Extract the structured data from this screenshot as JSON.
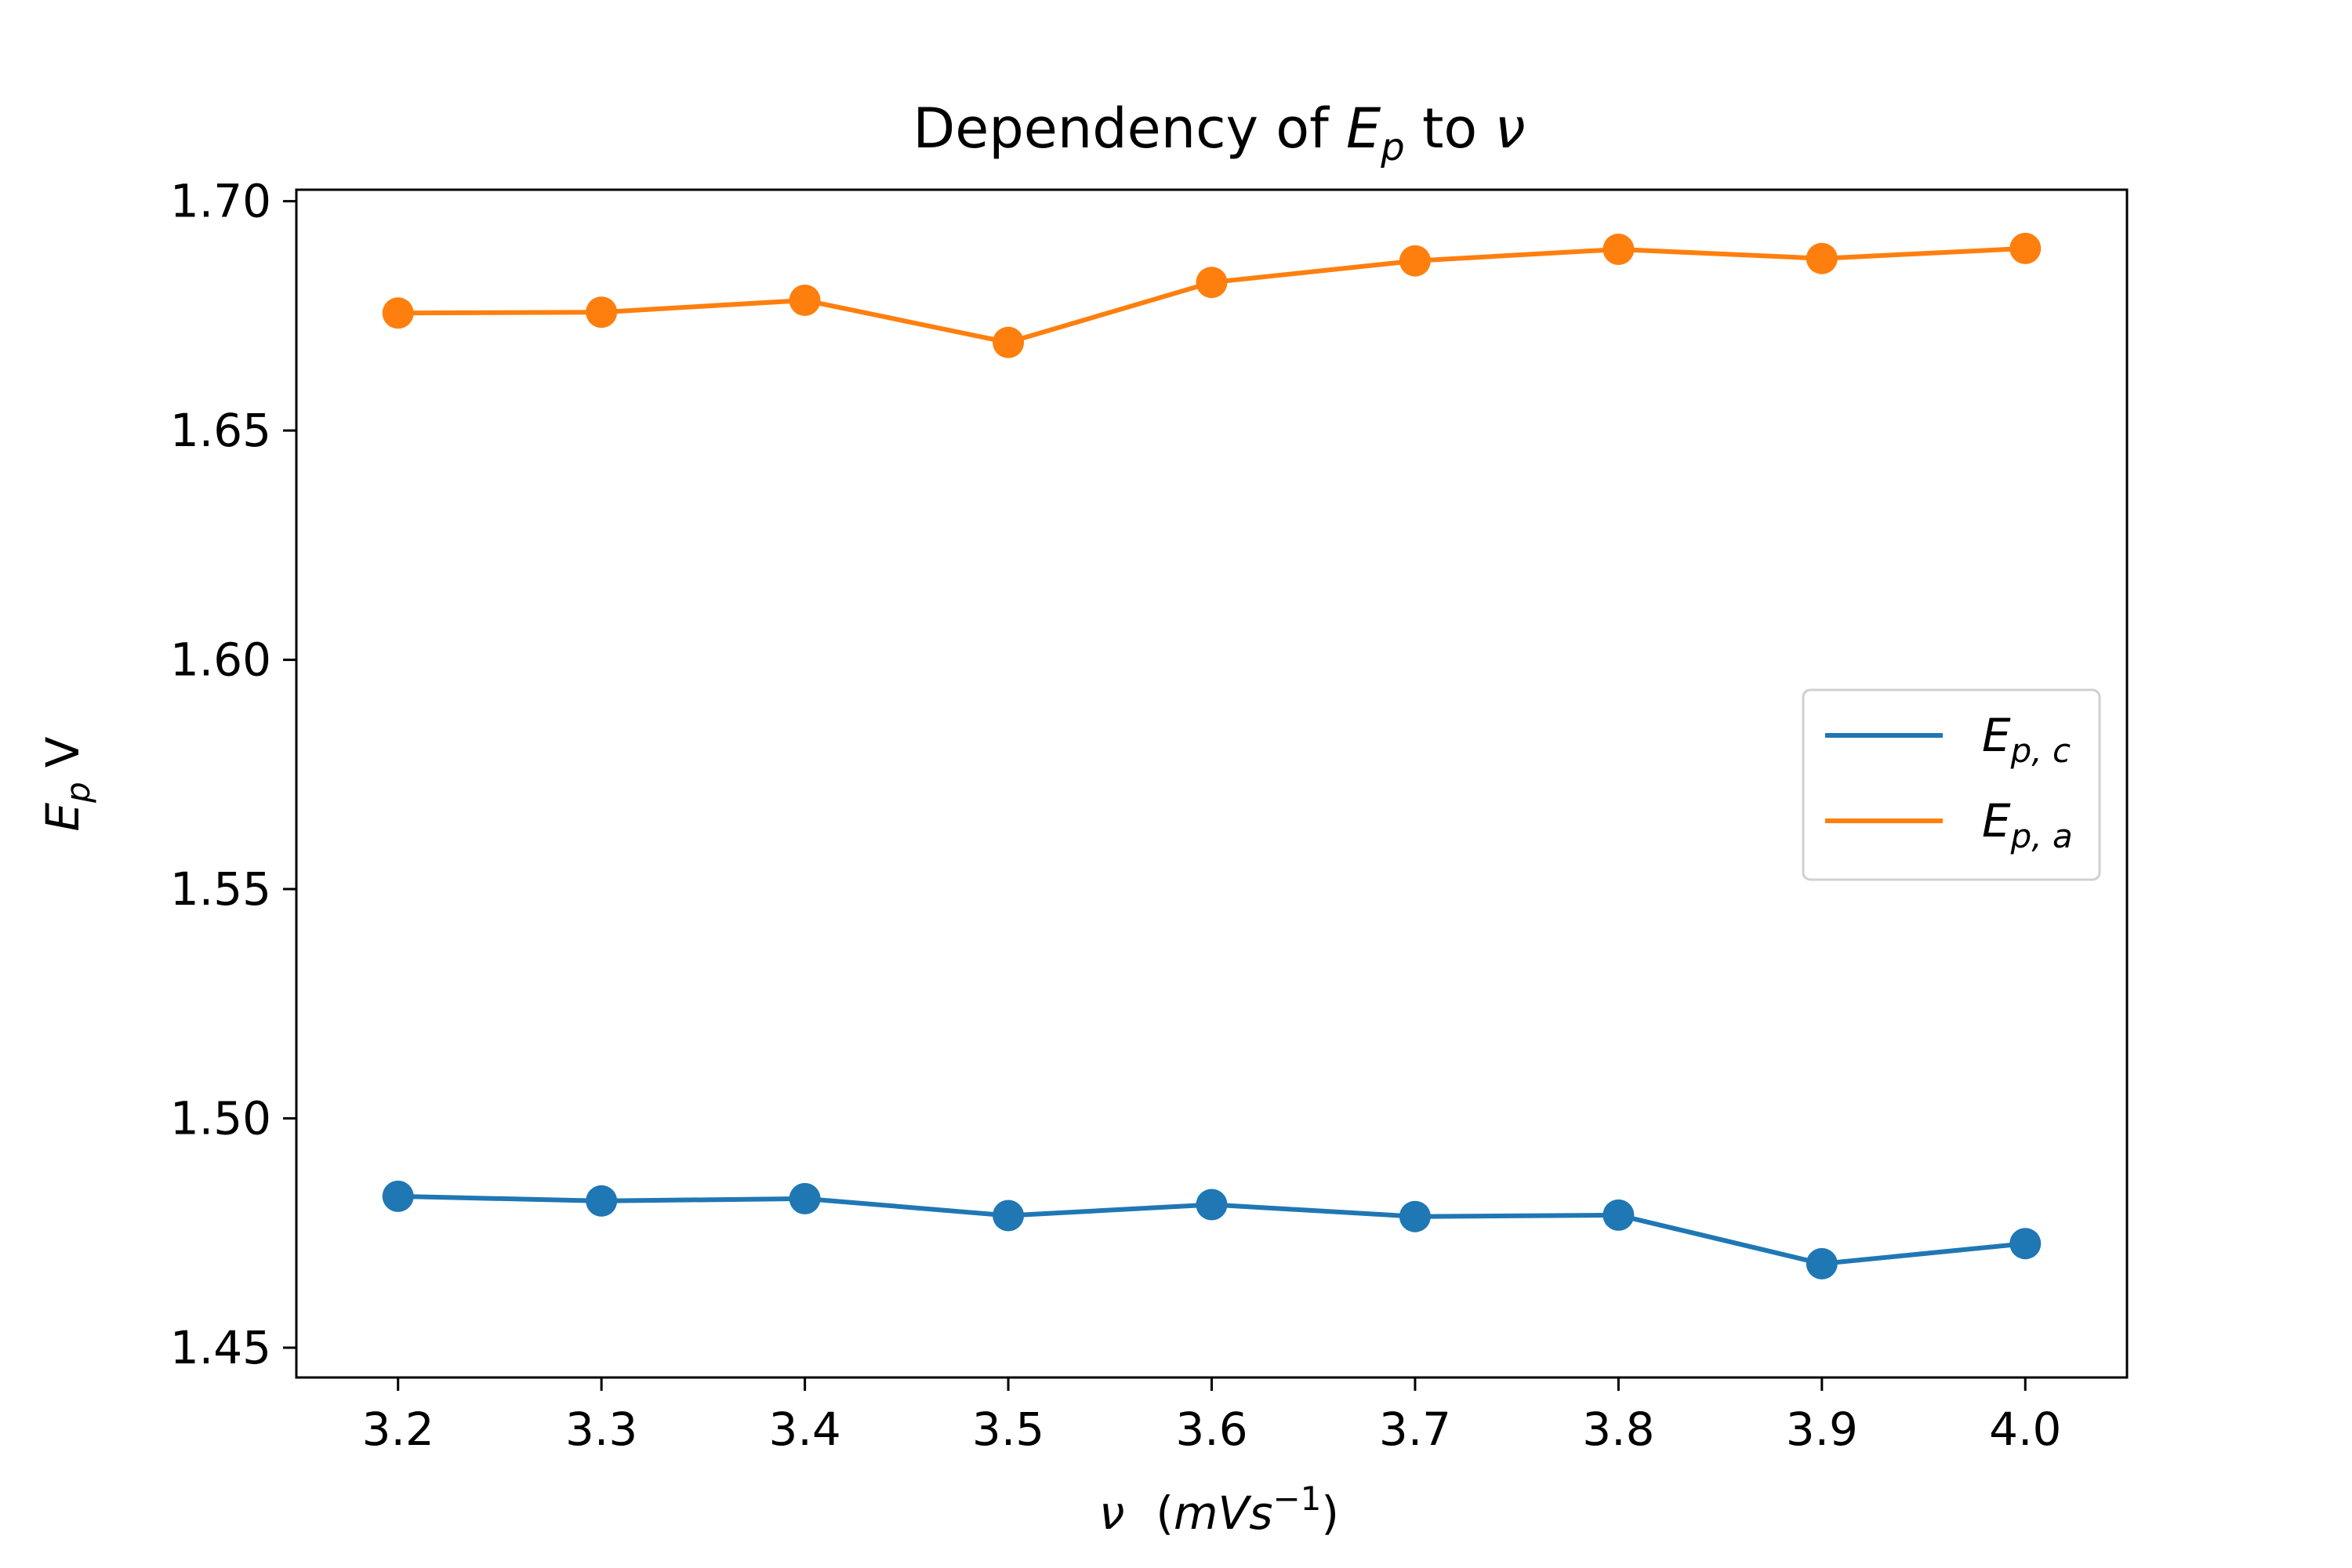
{
  "chart_data": {
    "type": "line",
    "title": {
      "prefix": "Dependency of ",
      "main": "E",
      "sub": "p",
      "middle": " to ",
      "symbol": "ν"
    },
    "xlabel": {
      "symbol": "ν",
      "unit_open": "(",
      "unit_main": "mVs",
      "unit_sup": "−1",
      "unit_close": ")"
    },
    "ylabel": {
      "main": "E",
      "sub": "p",
      "unit": "V"
    },
    "xlim": [
      3.15,
      4.05
    ],
    "ylim": [
      1.4435,
      1.7025
    ],
    "xticks": [
      3.2,
      3.3,
      3.4,
      3.5,
      3.6,
      3.7,
      3.8,
      3.9,
      4.0
    ],
    "xtick_labels": [
      "3.2",
      "3.3",
      "3.4",
      "3.5",
      "3.6",
      "3.7",
      "3.8",
      "3.9",
      "4.0"
    ],
    "yticks": [
      1.45,
      1.5,
      1.55,
      1.6,
      1.65,
      1.7
    ],
    "ytick_labels": [
      "1.45",
      "1.50",
      "1.55",
      "1.60",
      "1.65",
      "1.70"
    ],
    "x": [
      3.2,
      3.3,
      3.4,
      3.5,
      3.6,
      3.7,
      3.8,
      3.9,
      4.0
    ],
    "series": [
      {
        "key": "c",
        "name_main": "E",
        "name_sub": "p, c",
        "color": "#1f77b4",
        "values": [
          1.483,
          1.482,
          1.4825,
          1.4788,
          1.4812,
          1.4786,
          1.4789,
          1.4683,
          1.4727
        ]
      },
      {
        "key": "a",
        "name_main": "E",
        "name_sub": "p, a",
        "color": "#ff7f0e",
        "values": [
          1.6756,
          1.6758,
          1.6784,
          1.6692,
          1.6823,
          1.687,
          1.6895,
          1.6875,
          1.6897
        ]
      }
    ],
    "grid": false,
    "legend_position": "center-right"
  }
}
